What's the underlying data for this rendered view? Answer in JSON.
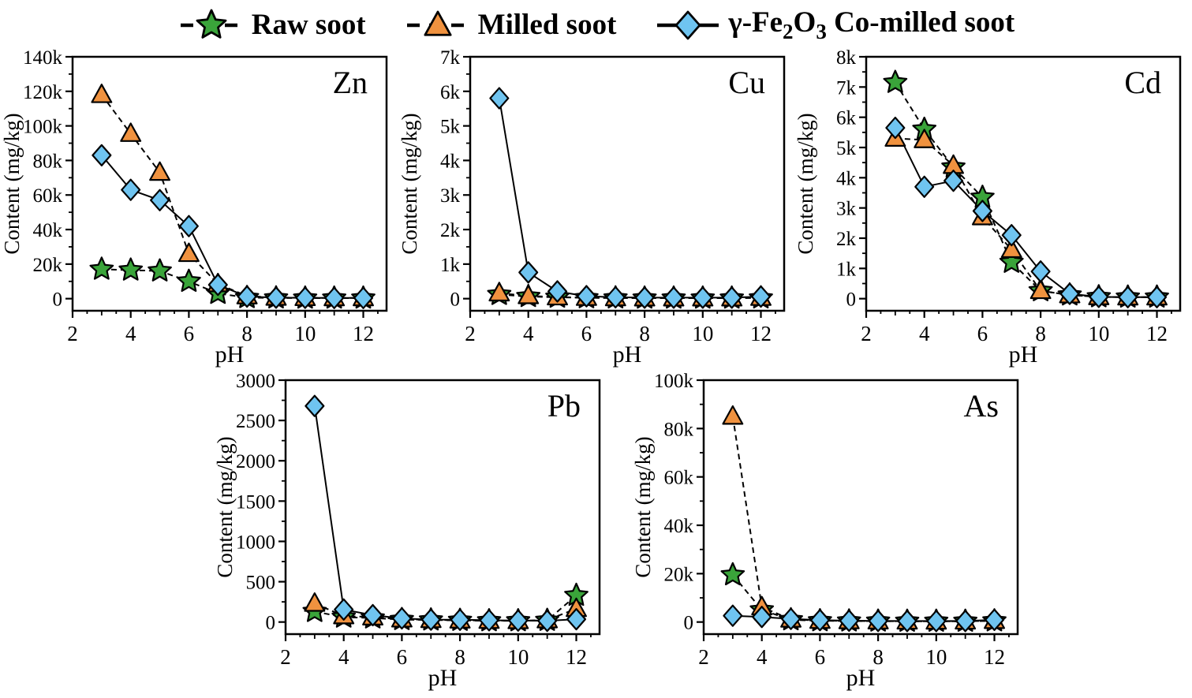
{
  "figure": {
    "background": "#ffffff"
  },
  "legend": {
    "items": [
      {
        "id": "raw-soot",
        "label": "Raw soot",
        "marker": "star",
        "color": "#3aa43a",
        "line": "dashed"
      },
      {
        "id": "milled-soot",
        "label": "Milled soot",
        "marker": "triangle",
        "color": "#f0923f",
        "line": "dashed"
      },
      {
        "id": "co-milled-soot",
        "label": "γ-Fe2O3 Co-milled soot",
        "label_parts": [
          {
            "t": "γ-Fe"
          },
          {
            "t": "2",
            "sub": true
          },
          {
            "t": "O"
          },
          {
            "t": "3",
            "sub": true
          },
          {
            "t": " Co-milled soot"
          }
        ],
        "marker": "diamond",
        "color": "#6fc4f0",
        "line": "solid"
      }
    ]
  },
  "chart_data": [
    {
      "type": "line",
      "title": "Zn",
      "xlabel": "pH",
      "ylabel": "Content (mg/kg)",
      "xlim": [
        2,
        12.8
      ],
      "ylim": [
        -7000,
        140000
      ],
      "xticks": [
        2,
        4,
        6,
        8,
        10,
        12
      ],
      "yticks": [
        0,
        20000,
        40000,
        60000,
        80000,
        100000,
        120000,
        140000
      ],
      "ytick_labels": [
        "0",
        "20k",
        "40k",
        "60k",
        "80k",
        "100k",
        "120k",
        "140k"
      ],
      "x": [
        3,
        4,
        5,
        6,
        7,
        8,
        9,
        10,
        11,
        12
      ],
      "series": [
        {
          "name": "Raw soot",
          "values": [
            17000,
            16500,
            16000,
            10000,
            3000,
            600,
            400,
            300,
            300,
            300
          ]
        },
        {
          "name": "Milled soot",
          "values": [
            118000,
            95500,
            73000,
            26000,
            8500,
            1500,
            700,
            500,
            400,
            400
          ]
        },
        {
          "name": "γ-Fe2O3 Co-milled soot",
          "values": [
            83000,
            63000,
            57000,
            42000,
            8000,
            1200,
            600,
            500,
            400,
            400
          ]
        }
      ]
    },
    {
      "type": "line",
      "title": "Cu",
      "xlabel": "pH",
      "ylabel": "Content (mg/kg)",
      "xlim": [
        2,
        12.8
      ],
      "ylim": [
        -350,
        7000
      ],
      "xticks": [
        2,
        4,
        6,
        8,
        10,
        12
      ],
      "yticks": [
        0,
        1000,
        2000,
        3000,
        4000,
        5000,
        6000,
        7000
      ],
      "ytick_labels": [
        "0",
        "1k",
        "2k",
        "3k",
        "4k",
        "5k",
        "6k",
        "7k"
      ],
      "x": [
        3,
        4,
        5,
        6,
        7,
        8,
        9,
        10,
        11,
        12
      ],
      "series": [
        {
          "name": "Raw soot",
          "values": [
            120,
            60,
            40,
            25,
            20,
            15,
            15,
            15,
            15,
            20
          ]
        },
        {
          "name": "Milled soot",
          "values": [
            160,
            80,
            45,
            30,
            20,
            15,
            15,
            15,
            15,
            30
          ]
        },
        {
          "name": "γ-Fe2O3 Co-milled soot",
          "values": [
            5800,
            760,
            210,
            70,
            40,
            30,
            30,
            30,
            30,
            60
          ]
        }
      ]
    },
    {
      "type": "line",
      "title": "Cd",
      "xlabel": "pH",
      "ylabel": "Content (mg/kg)",
      "xlim": [
        2,
        12.8
      ],
      "ylim": [
        -400,
        8000
      ],
      "xticks": [
        2,
        4,
        6,
        8,
        10,
        12
      ],
      "yticks": [
        0,
        1000,
        2000,
        3000,
        4000,
        5000,
        6000,
        7000,
        8000
      ],
      "ytick_labels": [
        "0",
        "1k",
        "2k",
        "3k",
        "4k",
        "5k",
        "6k",
        "7k",
        "8k"
      ],
      "x": [
        3,
        4,
        5,
        6,
        7,
        8,
        9,
        10,
        11,
        12
      ],
      "series": [
        {
          "name": "Raw soot",
          "values": [
            7150,
            5600,
            4350,
            3350,
            1200,
            260,
            120,
            60,
            50,
            50
          ]
        },
        {
          "name": "Milled soot",
          "values": [
            5300,
            5250,
            4400,
            2700,
            1620,
            260,
            120,
            60,
            50,
            50
          ]
        },
        {
          "name": "γ-Fe2O3 Co-milled soot",
          "values": [
            5650,
            3700,
            3900,
            2900,
            2100,
            900,
            160,
            60,
            50,
            50
          ]
        }
      ]
    },
    {
      "type": "line",
      "title": "Pb",
      "xlabel": "pH",
      "ylabel": "Content (mg/kg)",
      "xlim": [
        2,
        12.8
      ],
      "ylim": [
        -150,
        3000
      ],
      "xticks": [
        2,
        4,
        6,
        8,
        10,
        12
      ],
      "yticks": [
        0,
        500,
        1000,
        1500,
        2000,
        2500,
        3000
      ],
      "ytick_labels": [
        "0",
        "500",
        "1000",
        "1500",
        "2000",
        "2500",
        "3000"
      ],
      "x": [
        3,
        4,
        5,
        6,
        7,
        8,
        9,
        10,
        11,
        12
      ],
      "series": [
        {
          "name": "Raw soot",
          "values": [
            130,
            60,
            50,
            30,
            25,
            20,
            15,
            15,
            20,
            330
          ]
        },
        {
          "name": "Milled soot",
          "values": [
            230,
            75,
            60,
            35,
            28,
            22,
            18,
            15,
            25,
            165
          ]
        },
        {
          "name": "γ-Fe2O3 Co-milled soot",
          "values": [
            2680,
            155,
            85,
            45,
            30,
            28,
            22,
            18,
            15,
            35
          ]
        }
      ]
    },
    {
      "type": "line",
      "title": "As",
      "xlabel": "pH",
      "ylabel": "Content (mg/kg)",
      "xlim": [
        2,
        12.8
      ],
      "ylim": [
        -5000,
        100000
      ],
      "xticks": [
        2,
        4,
        6,
        8,
        10,
        12
      ],
      "yticks": [
        0,
        20000,
        40000,
        60000,
        80000,
        100000
      ],
      "ytick_labels": [
        "0",
        "20k",
        "40k",
        "60k",
        "80k",
        "100k"
      ],
      "x": [
        3,
        4,
        5,
        6,
        7,
        8,
        9,
        10,
        11,
        12
      ],
      "series": [
        {
          "name": "Raw soot",
          "values": [
            19500,
            5000,
            900,
            500,
            400,
            350,
            300,
            300,
            300,
            450
          ]
        },
        {
          "name": "Milled soot",
          "values": [
            85000,
            6200,
            1100,
            600,
            450,
            380,
            320,
            300,
            320,
            550
          ]
        },
        {
          "name": "γ-Fe2O3 Co-milled soot",
          "values": [
            2600,
            2100,
            1300,
            800,
            550,
            450,
            420,
            400,
            420,
            900
          ]
        }
      ]
    }
  ]
}
